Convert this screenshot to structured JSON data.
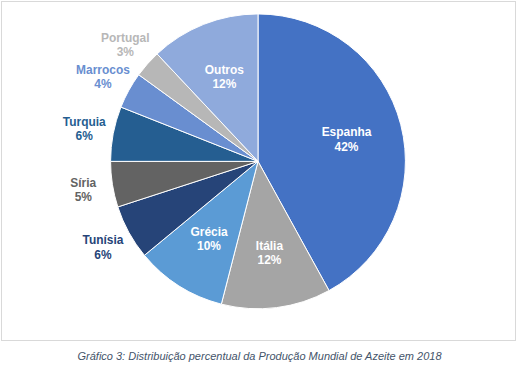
{
  "chart_data": {
    "type": "pie",
    "title": "Gráfico 3: Distribuição percentual da Produção Mundial de Azeite em 2018",
    "categories": [
      "Espanha",
      "Itália",
      "Grécia",
      "Tunísia",
      "Síria",
      "Turquia",
      "Marrocos",
      "Portugal",
      "Outros"
    ],
    "values": [
      42,
      12,
      10,
      6,
      5,
      6,
      4,
      3,
      12
    ],
    "value_labels": [
      "42%",
      "12%",
      "10%",
      "6%",
      "5%",
      "6%",
      "4%",
      "3%",
      "12%"
    ],
    "colors": [
      "#4472c4",
      "#a5a5a5",
      "#5b9bd5",
      "#264478",
      "#636363",
      "#255e91",
      "#698ed0",
      "#b7b7b7",
      "#8faadc"
    ],
    "data_labels": true
  }
}
